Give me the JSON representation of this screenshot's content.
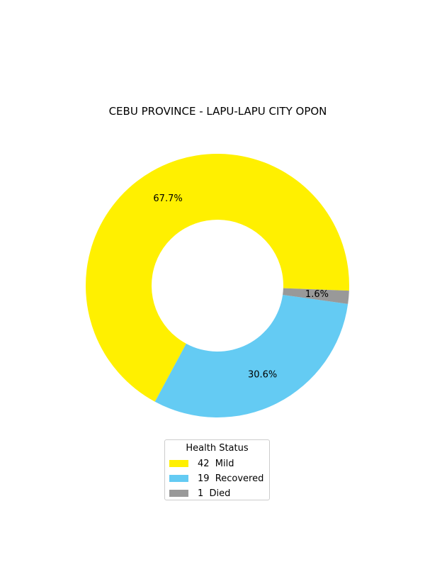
{
  "chart_data": {
    "type": "pie",
    "title": "CEBU PROVINCE - LAPU-LAPU CITY OPON",
    "donut": true,
    "slices": [
      {
        "label": "Mild",
        "value": 42,
        "percent_label": "67.7%",
        "color": "#FFF000"
      },
      {
        "label": "Recovered",
        "value": 19,
        "percent_label": "30.6%",
        "color": "#64CBF3"
      },
      {
        "label": "Died",
        "value": 1,
        "percent_label": "1.6%",
        "color": "#999999"
      }
    ],
    "legend": {
      "title": "Health Status",
      "placement": "bottom-center",
      "entries": [
        "42  Mild",
        "19  Recovered",
        "1  Died"
      ]
    }
  }
}
